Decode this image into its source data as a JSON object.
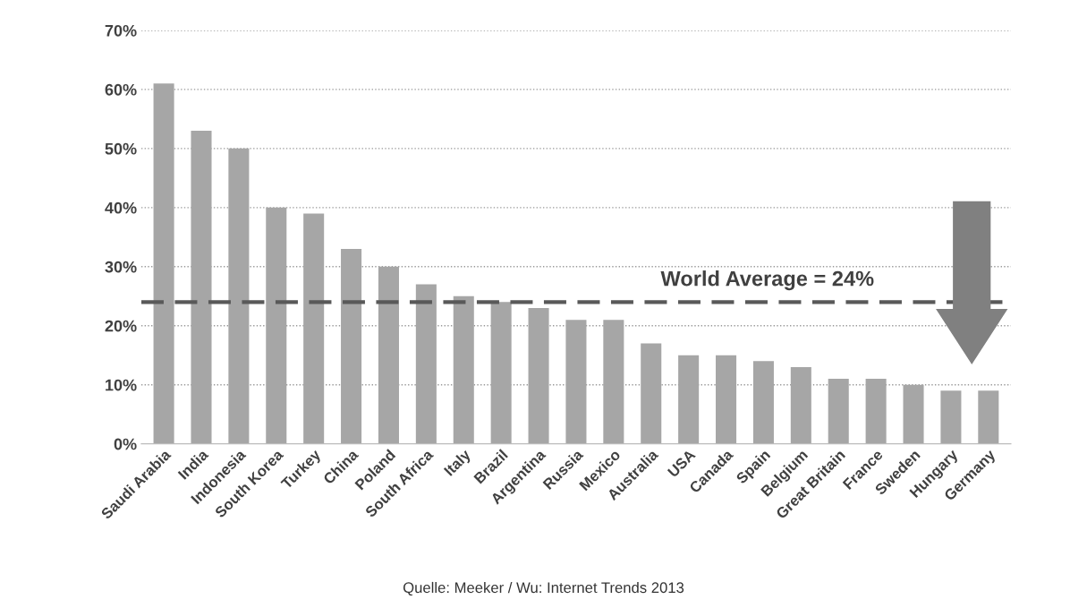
{
  "chart_data": {
    "type": "bar",
    "categories": [
      "Saudi Arabia",
      "India",
      "Indonesia",
      "South Korea",
      "Turkey",
      "China",
      "Poland",
      "South Africa",
      "Italy",
      "Brazil",
      "Argentina",
      "Russia",
      "Mexico",
      "Australia",
      "USA",
      "Canada",
      "Spain",
      "Belgium",
      "Great Britain",
      "France",
      "Sweden",
      "Hungary",
      "Germany"
    ],
    "values": [
      61,
      53,
      50,
      40,
      39,
      33,
      30,
      27,
      25,
      24,
      23,
      21,
      21,
      17,
      15,
      15,
      14,
      13,
      11,
      11,
      10,
      9,
      9
    ],
    "color": "#a6a6a6",
    "ylim": [
      0,
      70
    ],
    "yticks": [
      {
        "value": 0,
        "label": "0%"
      },
      {
        "value": 10,
        "label": "10%"
      },
      {
        "value": 20,
        "label": "20%"
      },
      {
        "value": 30,
        "label": "30%"
      },
      {
        "value": 40,
        "label": "40%"
      },
      {
        "value": 50,
        "label": "50%"
      },
      {
        "value": 60,
        "label": "60%"
      },
      {
        "value": 70,
        "label": "70%"
      }
    ],
    "grid": "y",
    "ref_lines": [
      {
        "axis": "y",
        "value": 24,
        "label": "World Average = 24%",
        "color": "#595959",
        "line_style": "dashed"
      }
    ],
    "annotations": [
      "Quelle: Meeker / Wu: Internet Trends 2013"
    ]
  }
}
